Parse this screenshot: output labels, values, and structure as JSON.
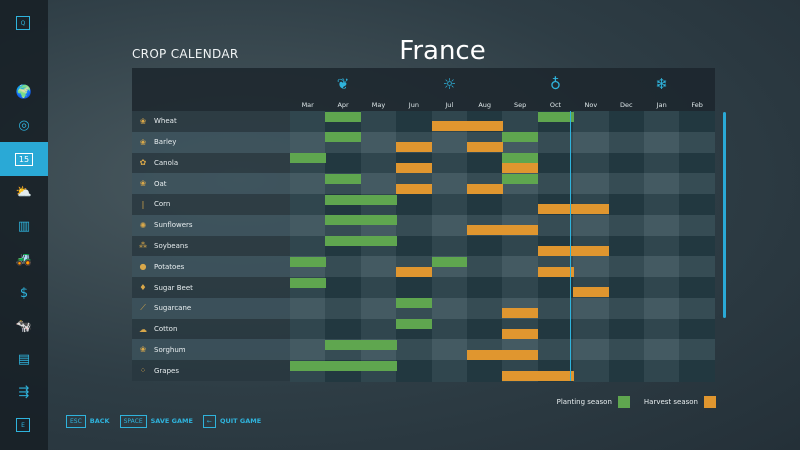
{
  "sidebar": {
    "top_key": "Q",
    "bottom_key": "E",
    "items": [
      {
        "icon": "globe-map-icon",
        "glyph": "🌍"
      },
      {
        "icon": "steering-wheel-icon",
        "glyph": "◎"
      },
      {
        "icon": "calendar-icon",
        "glyph": "15",
        "active": true
      },
      {
        "icon": "weather-icon",
        "glyph": "⛅"
      },
      {
        "icon": "statistics-icon",
        "glyph": "▥"
      },
      {
        "icon": "tractor-icon",
        "glyph": "🚜"
      },
      {
        "icon": "finances-icon",
        "glyph": "$"
      },
      {
        "icon": "animals-icon",
        "glyph": "🐄"
      },
      {
        "icon": "contracts-icon",
        "glyph": "▤"
      },
      {
        "icon": "production-icon",
        "glyph": "⇶"
      }
    ]
  },
  "page": {
    "title": "CROP CALENDAR",
    "country": "France"
  },
  "months": [
    "Mar",
    "Apr",
    "May",
    "Jun",
    "Jul",
    "Aug",
    "Sep",
    "Oct",
    "Nov",
    "Dec",
    "Jan",
    "Feb"
  ],
  "seasons": [
    {
      "month": "Apr",
      "icon": "spring-sprout-icon",
      "glyph": "❦"
    },
    {
      "month": "Jul",
      "icon": "summer-sun-icon",
      "glyph": "☼"
    },
    {
      "month": "Oct",
      "icon": "autumn-acorn-icon",
      "glyph": "♁"
    },
    {
      "month": "Jan",
      "icon": "winter-snowflake-icon",
      "glyph": "❄"
    }
  ],
  "current_time": {
    "month": "Oct",
    "fraction_through_month": 0.9
  },
  "colors": {
    "planting": "#5fa64f",
    "harvest": "#e0962f",
    "accent": "#2fb3dc"
  },
  "crops": [
    {
      "name": "Wheat",
      "icon": "wheat-icon",
      "glyph": "❀",
      "planting": [
        "Apr",
        "Oct"
      ],
      "harvest": [
        "Jul",
        "Aug"
      ]
    },
    {
      "name": "Barley",
      "icon": "barley-icon",
      "glyph": "❀",
      "planting": [
        "Apr",
        "Sep"
      ],
      "harvest": [
        "Jun",
        "Aug"
      ]
    },
    {
      "name": "Canola",
      "icon": "canola-icon",
      "glyph": "✿",
      "planting": [
        "Mar",
        "Sep"
      ],
      "harvest": [
        "Jun",
        "Sep"
      ]
    },
    {
      "name": "Oat",
      "icon": "oat-icon",
      "glyph": "❀",
      "planting": [
        "Apr",
        "Sep"
      ],
      "harvest": [
        "Jun",
        "Aug"
      ]
    },
    {
      "name": "Corn",
      "icon": "corn-icon",
      "glyph": "❘",
      "planting": [
        "Apr",
        "May"
      ],
      "harvest": [
        "Oct",
        "Nov"
      ]
    },
    {
      "name": "Sunflowers",
      "icon": "sunflower-icon",
      "glyph": "✺",
      "planting": [
        "Apr",
        "May"
      ],
      "harvest": [
        "Aug",
        "Sep"
      ]
    },
    {
      "name": "Soybeans",
      "icon": "soybean-icon",
      "glyph": "⁂",
      "planting": [
        "Apr",
        "May"
      ],
      "harvest": [
        "Oct",
        "Nov"
      ]
    },
    {
      "name": "Potatoes",
      "icon": "potato-icon",
      "glyph": "●",
      "planting": [
        "Mar",
        "Jul"
      ],
      "harvest": [
        "Jun",
        "Oct"
      ]
    },
    {
      "name": "Sugar Beet",
      "icon": "sugar-beet-icon",
      "glyph": "♦",
      "planting": [
        "Mar"
      ],
      "harvest": [
        "Nov"
      ]
    },
    {
      "name": "Sugarcane",
      "icon": "sugarcane-icon",
      "glyph": "⟋",
      "planting": [
        "Jun"
      ],
      "harvest": [
        "Sep"
      ]
    },
    {
      "name": "Cotton",
      "icon": "cotton-icon",
      "glyph": "☁",
      "planting": [
        "Jun"
      ],
      "harvest": [
        "Sep"
      ]
    },
    {
      "name": "Sorghum",
      "icon": "sorghum-icon",
      "glyph": "❀",
      "planting": [
        "Apr",
        "May"
      ],
      "harvest": [
        "Aug",
        "Sep"
      ]
    },
    {
      "name": "Grapes",
      "icon": "grapes-icon",
      "glyph": "⁘",
      "planting": [
        "Mar",
        "Apr",
        "May"
      ],
      "harvest": [
        "Sep",
        "Oct"
      ]
    }
  ],
  "legend": {
    "planting": "Planting season",
    "harvest": "Harvest season"
  },
  "footer": {
    "back_key": "ESC",
    "back_label": "BACK",
    "save_key": "SPACE",
    "save_label": "SAVE GAME",
    "quit_key": "←",
    "quit_label": "QUIT GAME"
  }
}
